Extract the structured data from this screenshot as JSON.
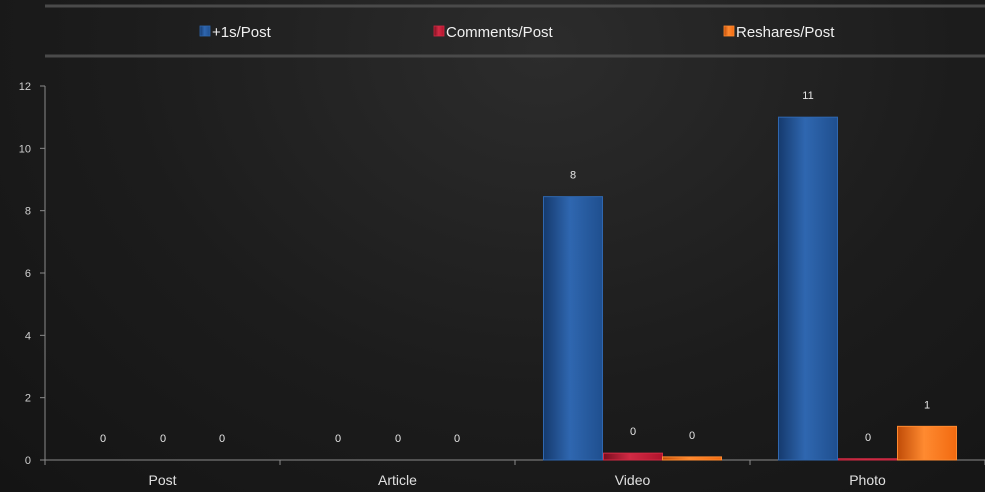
{
  "chart_data": {
    "type": "bar",
    "categories": [
      "Post",
      "Article",
      "Video",
      "Photo"
    ],
    "series": [
      {
        "name": "+1s/Post",
        "values": [
          0,
          0,
          8.45,
          11.0
        ],
        "labels": [
          "0",
          "0",
          "8",
          "11"
        ]
      },
      {
        "name": "Comments/Post",
        "values": [
          0,
          0,
          0.22,
          0.04
        ],
        "labels": [
          "0",
          "0",
          "0",
          "0"
        ]
      },
      {
        "name": "Reshares/Post",
        "values": [
          0,
          0,
          0.1,
          1.08
        ],
        "labels": [
          "0",
          "0",
          "0",
          "1"
        ]
      }
    ],
    "ylim": [
      0,
      12
    ],
    "yticks": [
      0,
      2,
      4,
      6,
      8,
      10,
      12
    ],
    "legend_position": "top",
    "grid": false
  },
  "colors": {
    "series": [
      "#1f4f8f",
      "#b0142c",
      "#f26a10"
    ],
    "series_light": [
      "#2f67b0",
      "#d22a44",
      "#ff8a30"
    ],
    "series_dark": [
      "#153a6e",
      "#7a0e1f",
      "#c04c08"
    ],
    "axis": "#8a8a8a",
    "label": "#e0e0e0"
  }
}
